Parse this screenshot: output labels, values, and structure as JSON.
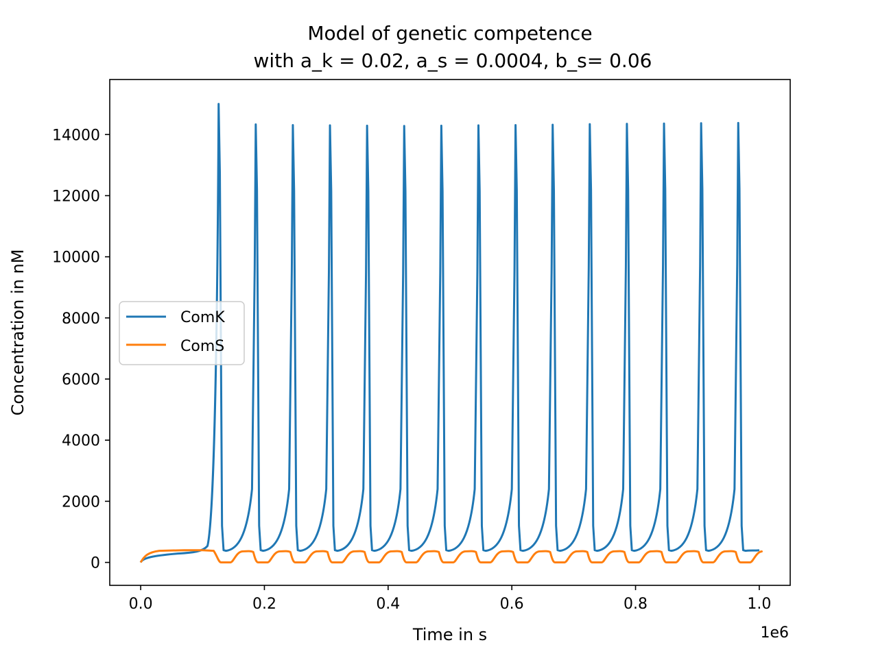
{
  "chart_data": {
    "type": "line",
    "title_line1": "Model of genetic competence",
    "title_line2": "with a_k = 0.02, a_s = 0.0004, b_s= 0.06",
    "xlabel": "Time in s",
    "ylabel": "Concentration in nM",
    "x_offset_text": "1e6",
    "xlim": [
      -50000,
      1050000
    ],
    "ylim": [
      -750,
      15800
    ],
    "x_ticks": [
      0,
      200000,
      400000,
      600000,
      800000,
      1000000
    ],
    "x_tick_labels": [
      "0.0",
      "0.2",
      "0.4",
      "0.6",
      "0.8",
      "1.0"
    ],
    "y_ticks": [
      0,
      2000,
      4000,
      6000,
      8000,
      10000,
      12000,
      14000
    ],
    "y_tick_labels": [
      "0",
      "2000",
      "4000",
      "6000",
      "8000",
      "10000",
      "12000",
      "14000"
    ],
    "grid": false,
    "legend_position": "center-left",
    "series": [
      {
        "name": "ComK",
        "color": "#1f77b4",
        "baseline": 380,
        "pre_rise_start_x": 0,
        "pre_rise_start_y": 0,
        "pre_rise_plateau_y": 340,
        "peaks_x": [
          126000,
          186000,
          246000,
          306000,
          366000,
          426000,
          486000,
          546000,
          606000,
          666000,
          726000,
          786000,
          846000,
          906000,
          966000
        ],
        "peaks_y": [
          15000,
          14330,
          14310,
          14300,
          14290,
          14280,
          14290,
          14300,
          14310,
          14320,
          14340,
          14350,
          14360,
          14370,
          14380
        ],
        "end_x": 1000000,
        "end_y": 400
      },
      {
        "name": "ComS",
        "color": "#ff7f0e",
        "initial_x": [
          0,
          10000,
          20000,
          40000,
          70000,
          100000,
          118000
        ],
        "initial_y": [
          0,
          250,
          350,
          390,
          400,
          400,
          380
        ],
        "trough_x": [
          130000,
          190000,
          250000,
          310000,
          370000,
          430000,
          490000,
          550000,
          610000,
          670000,
          730000,
          790000,
          850000,
          910000,
          970000
        ],
        "plateau_y": 360,
        "trough_y": 0,
        "end_x": 1000000,
        "end_y": 340
      }
    ]
  }
}
